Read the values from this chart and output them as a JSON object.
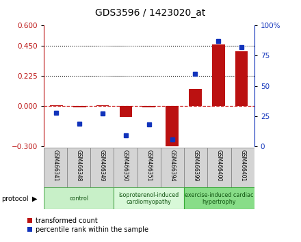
{
  "title": "GDS3596 / 1423020_at",
  "samples": [
    "GSM466341",
    "GSM466348",
    "GSM466349",
    "GSM466350",
    "GSM466351",
    "GSM466394",
    "GSM466399",
    "GSM466400",
    "GSM466401"
  ],
  "transformed_count": [
    0.005,
    -0.01,
    0.005,
    -0.08,
    -0.01,
    -0.32,
    0.13,
    0.46,
    0.41
  ],
  "percentile_rank_pct": [
    28,
    19,
    27,
    9,
    18,
    6,
    60,
    87,
    82
  ],
  "group_info": [
    {
      "start": 0,
      "end": 3,
      "label": "control",
      "color": "#c8f0c8",
      "edge_color": "#55aa55"
    },
    {
      "start": 3,
      "end": 6,
      "label": "isoproterenol-induced\ncardiomyopathy",
      "color": "#d8f8d8",
      "edge_color": "#55aa55"
    },
    {
      "start": 6,
      "end": 9,
      "label": "exercise-induced cardiac\nhypertrophy",
      "color": "#88dd88",
      "edge_color": "#33aa33"
    }
  ],
  "ylim_left": [
    -0.3,
    0.6
  ],
  "ylim_right": [
    0,
    100
  ],
  "yticks_left": [
    -0.3,
    0,
    0.225,
    0.45,
    0.6
  ],
  "yticks_right": [
    0,
    25,
    50,
    75,
    100
  ],
  "bar_color": "#bb1111",
  "dot_color": "#1133bb",
  "dashed_line_color": "#cc2222",
  "dotted_line_vals": [
    0.225,
    0.45
  ],
  "bar_width": 0.55,
  "legend_items": [
    "transformed count",
    "percentile rank within the sample"
  ],
  "protocol_label": "protocol",
  "background_color": "#ffffff",
  "cell_color": "#d4d4d4",
  "cell_edge_color": "#888888"
}
